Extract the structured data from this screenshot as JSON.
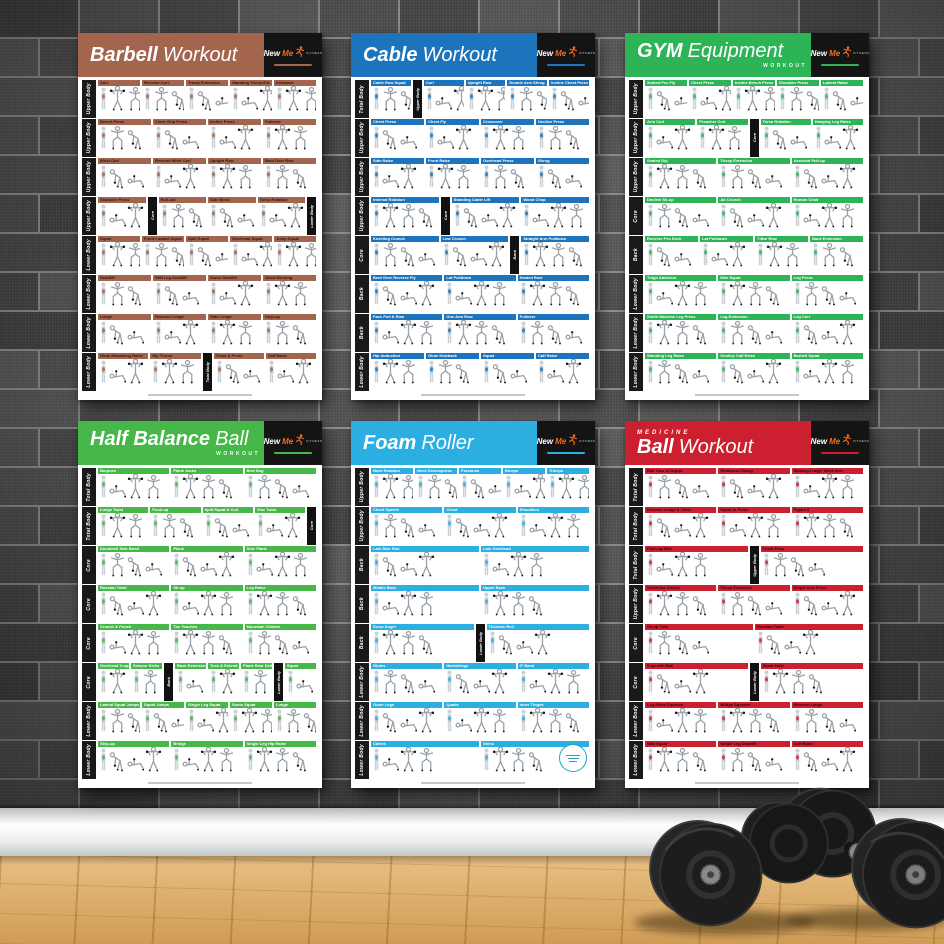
{
  "brand": {
    "name_a": "New",
    "name_b": "Me",
    "sub": "FITNESS",
    "accent": "#f26a21"
  },
  "environment": {
    "wall_tile_color": "#4a4a4a",
    "grout_color": "#8f8f8f",
    "baseboard_color": "#f0f1f2",
    "floor_color": "#d6a360",
    "dumbbell_color": "#222222"
  },
  "posters": [
    {
      "id": "barbell",
      "color": "#a3654d",
      "bar_text_color": "#2f160c",
      "title": {
        "pre": "",
        "bold": "Barbell",
        "light": "Workout",
        "sub": ""
      },
      "rows": [
        {
          "label": "Upper Body",
          "cells": [
            "Curl",
            "Reverse Curl",
            "Tricep Extension",
            "Standing Tricep Ext.",
            "Kickback"
          ]
        },
        {
          "label": "Upper Body",
          "cells": [
            "Bench Press",
            "Close Grip Press",
            "Incline Press",
            "Pullover"
          ]
        },
        {
          "label": "Upper Body",
          "cells": [
            "Wrist Curl",
            "Reverse Wrist Curl",
            "Upright Row",
            "Bent Over Row"
          ]
        },
        {
          "label": "Upper Body",
          "cells": [
            "Shoulder Press",
            "#Core",
            "Roll-out",
            "Side Bend",
            "Torso Rotation",
            "#Lower Body"
          ]
        },
        {
          "label": "Lower Body",
          "cells": [
            "Squat",
            "Front Loaded Squat",
            "Split Squat",
            "Overhead Squat",
            "Jump Squat"
          ]
        },
        {
          "label": "Lower Body",
          "cells": [
            "Deadlift",
            "Stiff Leg Deadlift",
            "Sumo Deadlift",
            "Good Morning"
          ]
        },
        {
          "label": "Lower Body",
          "cells": [
            "Lunge",
            "Reverse Lunge",
            "Side Lunge",
            "Step-up"
          ]
        },
        {
          "label": "Lower Body",
          "cells": [
            "Glute Hamstring Raise",
            "Hip Thrust",
            "#Total Body",
            "Clean & Press",
            "Calf Raise"
          ]
        }
      ]
    },
    {
      "id": "cable",
      "color": "#1c75bc",
      "bar_text_color": "#ffffff",
      "title": {
        "pre": "",
        "bold": "Cable",
        "light": "Workout",
        "sub": ""
      },
      "rows": [
        {
          "label": "Total Body",
          "cells": [
            "Cable Row Squat",
            "#Upper Body",
            "Curl",
            "Upright Row",
            "Double Arm Shrug",
            "Incline Chest Press"
          ]
        },
        {
          "label": "Upper Body",
          "cells": [
            "Chest Press",
            "Chest Fly",
            "Crossover",
            "Decline Press"
          ]
        },
        {
          "label": "Upper Body",
          "cells": [
            "Side Raise",
            "Front Raise",
            "Overhead Press",
            "Shrug"
          ]
        },
        {
          "label": "Upper Body",
          "cells": [
            "Internal Rotation",
            "#Core",
            "Standing Cable Lift",
            "Wood Chop"
          ]
        },
        {
          "label": "Core",
          "cells": [
            "Kneeling Crunch",
            "Low Crunch",
            "#Back",
            "Straight Arm Pulldown"
          ]
        },
        {
          "label": "Back",
          "cells": [
            "Bent Over Reverse Fly",
            "Lat Pulldown",
            "Seated Row"
          ]
        },
        {
          "label": "Back",
          "cells": [
            "Face Pull & Row",
            "One Arm Row",
            "Pullover"
          ]
        },
        {
          "label": "Lower Body",
          "cells": [
            "Hip Abduction",
            "Glute Kickback",
            "Squat",
            "Calf Raise"
          ]
        }
      ]
    },
    {
      "id": "gym-equipment",
      "color": "#2db456",
      "bar_text_color": "#ffffff",
      "title": {
        "pre": "",
        "bold": "GYM",
        "light": "Equipment",
        "sub": "WORKOUT"
      },
      "rows": [
        {
          "label": "Upper Body",
          "cells": [
            "Seated Pec Fly",
            "Chest Press",
            "Incline Bench Press",
            "Shoulder Press",
            "Lateral Raise"
          ]
        },
        {
          "label": "Upper Body",
          "cells": [
            "Arm Curl",
            "Preacher Curl",
            "#Core",
            "Torso Rotation",
            "Hanging Leg Raise"
          ]
        },
        {
          "label": "Upper Body",
          "cells": [
            "Seated Dip",
            "Tricep Extension",
            "Assisted Pull-up"
          ]
        },
        {
          "label": "Core",
          "cells": [
            "Decline Sit-up",
            "Ab Crunch",
            "Roman Chair"
          ]
        },
        {
          "label": "Back",
          "cells": [
            "Reverse Pec Deck",
            "Lat Pulldown",
            "T-Bar Row",
            "Back Extension"
          ]
        },
        {
          "label": "Lower Body",
          "cells": [
            "Thigh Abductor",
            "Mini Squat",
            "Leg Press"
          ]
        },
        {
          "label": "Lower Body",
          "cells": [
            "Smith Machine Leg Press",
            "Leg Extension",
            "Leg Curl"
          ]
        },
        {
          "label": "Lower Body",
          "cells": [
            "Standing Leg Raise",
            "Donkey Calf Raise",
            "Barbell Squat"
          ]
        }
      ]
    },
    {
      "id": "half-balance-ball",
      "color": "#46b749",
      "bar_text_color": "#ffffff",
      "title": {
        "pre": "",
        "bold": "Half Balance",
        "light": "Ball",
        "sub": "WORKOUT"
      },
      "rows": [
        {
          "label": "Total Body",
          "cells": [
            "Burpees",
            "Plank Jacks",
            "Bird Dog"
          ]
        },
        {
          "label": "Total Body",
          "cells": [
            "Lunge Twist",
            "Push-up",
            "Split Squat & Curl",
            "Vibe Twist",
            "#Core"
          ]
        },
        {
          "label": "Core",
          "cells": [
            "Dumbbell Side Bend",
            "Plank",
            "Side Plank"
          ]
        },
        {
          "label": "Core",
          "cells": [
            "Russian Twist",
            "Sit-up",
            "Leg Raise"
          ]
        },
        {
          "label": "Core",
          "cells": [
            "Crunch & Punch",
            "Toe Touches",
            "Mountain Climber"
          ]
        },
        {
          "label": "Core",
          "cells": [
            "Overhead V-ups",
            "Scissor Kicks",
            "#Back",
            "Back Extension",
            "Tuck & Extend",
            "Plank Rear Delt Fly",
            "#Lower Body",
            "Squat"
          ]
        },
        {
          "label": "Lower Body",
          "cells": [
            "Lateral Squat Jumps",
            "Squat Jumps",
            "Single Leg Squat",
            "Sumo Squat",
            "Lunge"
          ]
        },
        {
          "label": "Lower Body",
          "cells": [
            "Step-up",
            "Bridge",
            "Single Leg Hip Raise"
          ]
        }
      ]
    },
    {
      "id": "foam-roller",
      "color": "#2baee2",
      "bar_text_color": "#ffffff",
      "badge_color": "#1ba9bf",
      "title": {
        "pre": "",
        "bold": "Foam",
        "light": "Roller",
        "sub": ""
      },
      "rows": [
        {
          "label": "Upper Body",
          "cells": [
            "Neck Rotation",
            "Neck Decompress",
            "Forearms",
            "Biceps",
            "Triceps"
          ]
        },
        {
          "label": "Upper Body",
          "cells": [
            "Chest Opener",
            "Chest",
            "Shoulders"
          ]
        },
        {
          "label": "Back",
          "cells": [
            "Lats Side Roll",
            "Lats Overhead"
          ]
        },
        {
          "label": "Back",
          "cells": [
            "Middle Back",
            "Upper Back"
          ]
        },
        {
          "label": "Back",
          "cells": [
            "Snow Angel",
            "#Lower Body",
            "Thoracic Roll"
          ]
        },
        {
          "label": "Lower Body",
          "cells": [
            "Glutes",
            "Hamstrings",
            "IT Band"
          ]
        },
        {
          "label": "Lower Body",
          "cells": [
            "Outer Legs",
            "Quads",
            "Inner Thighs"
          ]
        },
        {
          "label": "Lower Body",
          "cells": [
            "Calves",
            "Shins"
          ]
        }
      ]
    },
    {
      "id": "medicine-ball",
      "color": "#cc2030",
      "bar_text_color": "#2a070b",
      "title": {
        "pre": "MEDICINE",
        "bold": "Ball",
        "light": "Workout",
        "sub": ""
      },
      "rows": [
        {
          "label": "Total Body",
          "cells": [
            "Ball Toss w/ Squat",
            "Rotational Swing",
            "Walking Lunge Twist Over"
          ]
        },
        {
          "label": "Total Body",
          "cells": [
            "Reverse Lunge & Twist",
            "Squat to Press",
            "Figure 8"
          ]
        },
        {
          "label": "Total Body",
          "cells": [
            "Push-up Roll",
            "#Upper Body",
            "Chest Pass"
          ]
        },
        {
          "label": "Upper Body",
          "cells": [
            "Overhead Circles",
            "Tricep Extension",
            "Single Arm Press"
          ]
        },
        {
          "label": "Core",
          "cells": [
            "Sit-up Toss",
            "Russian Twist"
          ]
        },
        {
          "label": "Core",
          "cells": [
            "V-up with Ball",
            "#Lower Body",
            "Squat Hold"
          ]
        },
        {
          "label": "Lower Body",
          "cells": [
            "Leg Raise Squeeze",
            "Bridge Squeeze",
            "Reverse Lunge"
          ]
        },
        {
          "label": "Lower Body",
          "cells": [
            "Wall Squat",
            "Single Leg Deadlift",
            "Calf Raise"
          ]
        }
      ]
    }
  ]
}
